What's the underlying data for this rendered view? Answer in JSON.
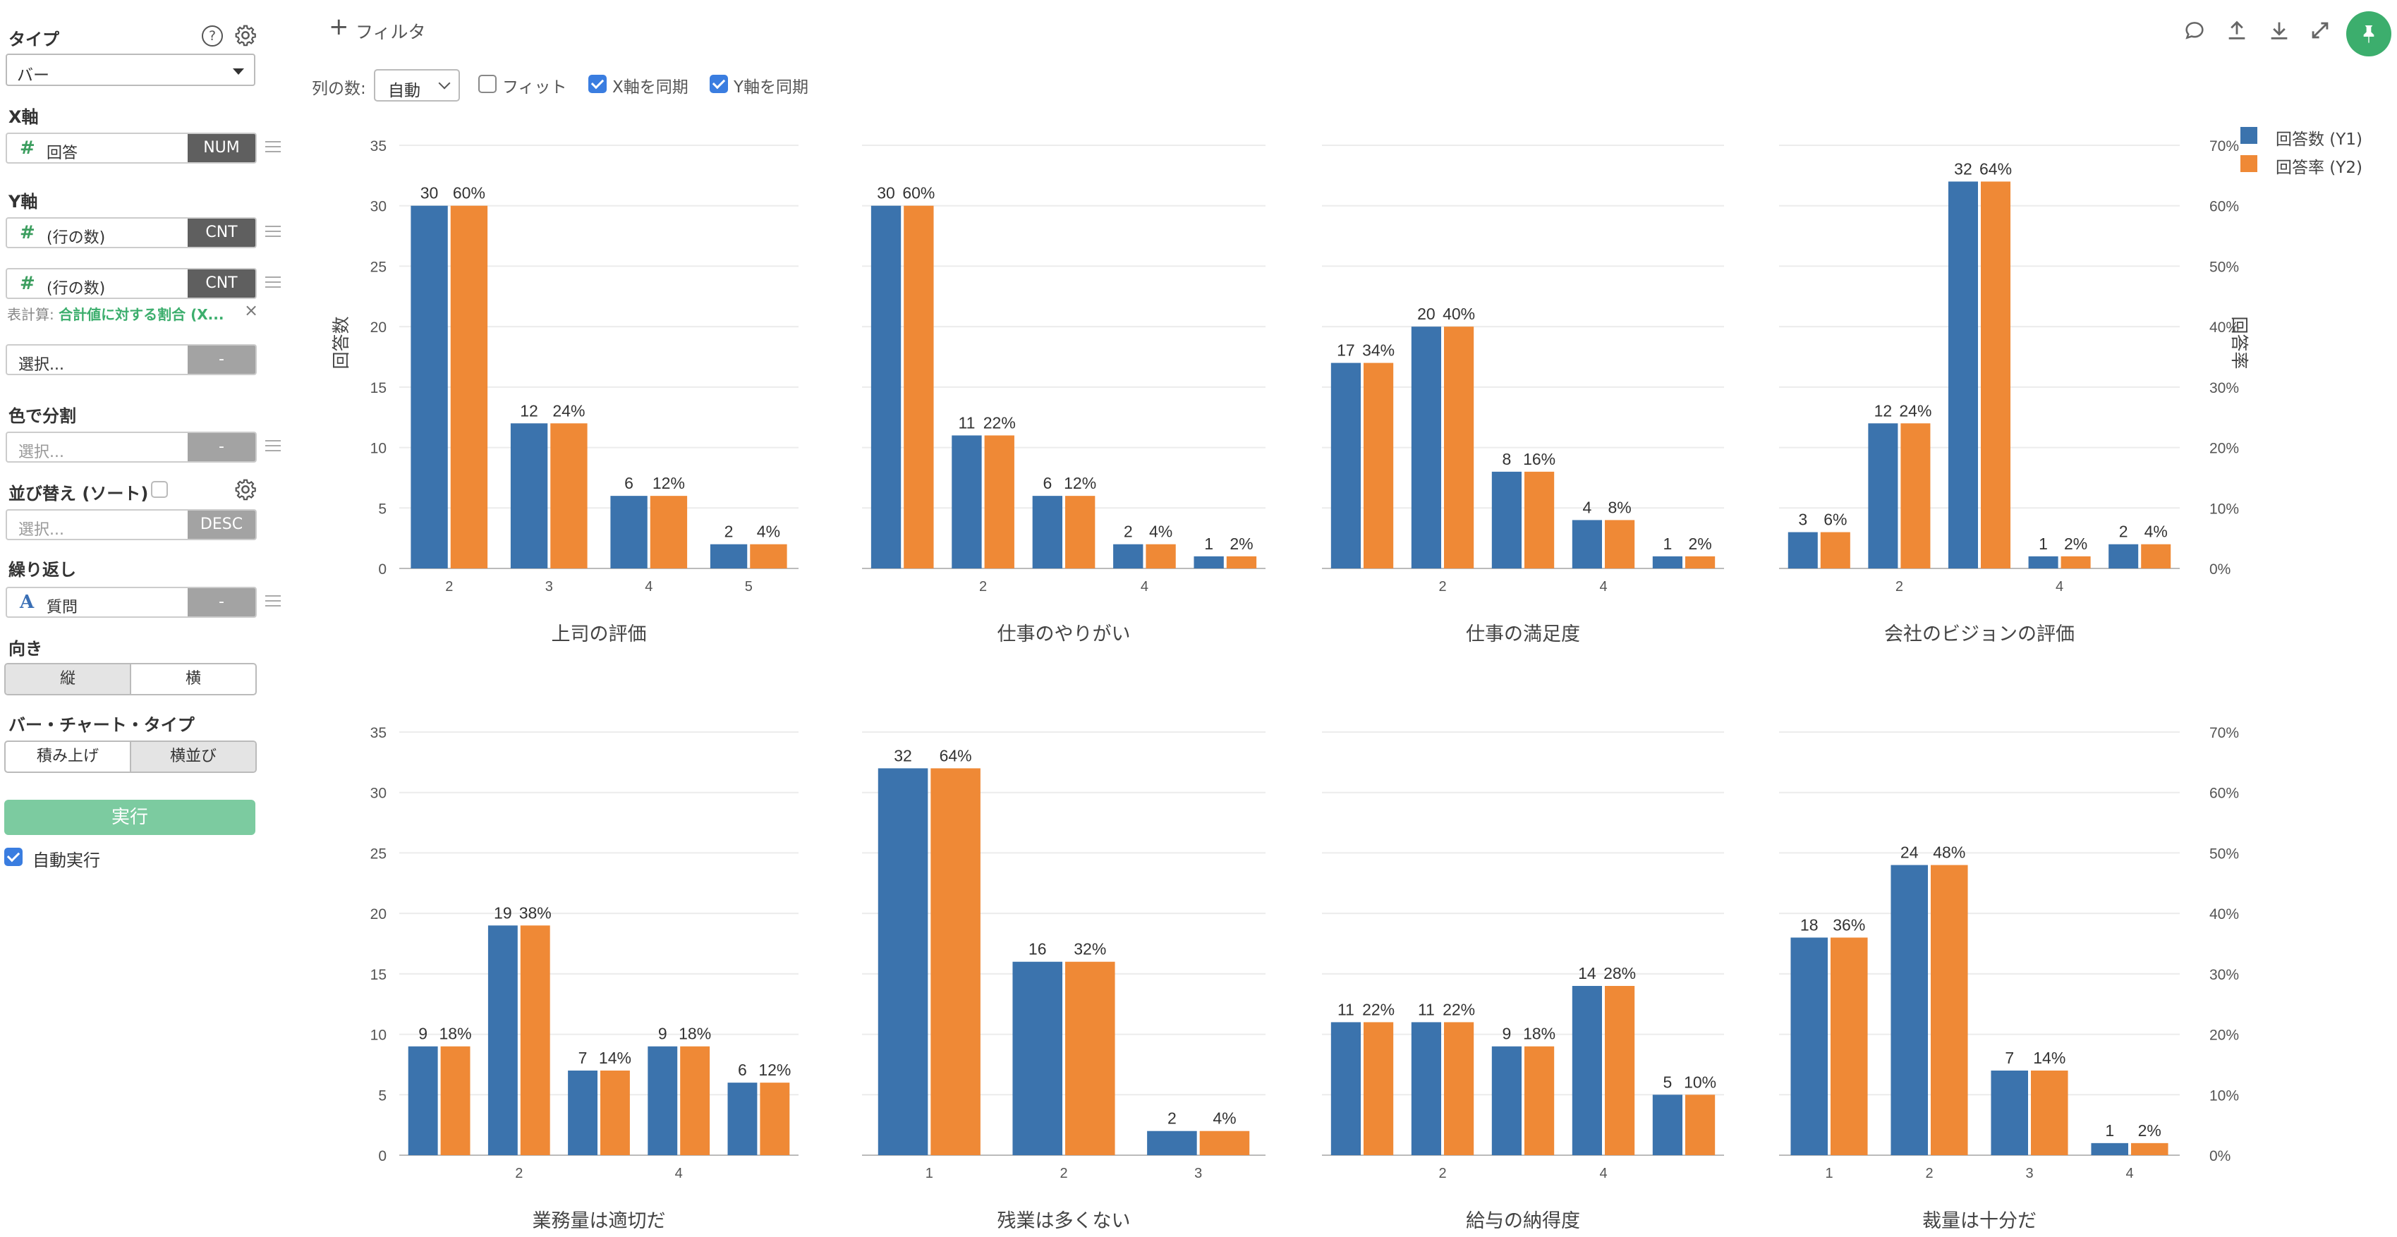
{
  "sidebar": {
    "type_label": "タイプ",
    "type_value": "バー",
    "x_axis_label": "X軸",
    "x_field": {
      "name": "回答",
      "tag": "NUM"
    },
    "y_axis_label": "Y軸",
    "y_fields": [
      {
        "name": "(行の数)",
        "tag": "CNT"
      },
      {
        "name": "(行の数)",
        "tag": "CNT"
      }
    ],
    "calc_prefix": "表計算:",
    "calc_value": "合計値に対する割合 (X...",
    "extra_select": {
      "placeholder": "選択...",
      "tag": "-"
    },
    "color_label": "色で分割",
    "color_select": {
      "placeholder": "選択...",
      "tag": "-"
    },
    "sort_label": "並び替え (ソート)",
    "sort_select": {
      "placeholder": "選択...",
      "tag": "DESC"
    },
    "repeat_label": "繰り返し",
    "repeat_field": {
      "name": "質問",
      "tag": "-"
    },
    "direction_label": "向き",
    "direction_options": [
      "縦",
      "横"
    ],
    "bartype_label": "バー・チャート・タイプ",
    "bartype_options": [
      "積み上げ",
      "横並び"
    ],
    "run_label": "実行",
    "auto_run_label": "自動実行"
  },
  "toolbar": {
    "filter_label": "フィルタ",
    "columns_label": "列の数:",
    "columns_value": "自動",
    "fit_label": "フィット",
    "sync_x_label": "X軸を同期",
    "sync_y_label": "Y軸を同期"
  },
  "colors": {
    "y1": "#3b73ad",
    "y2": "#ef8936",
    "accent": "#3cae6d"
  },
  "legend": [
    "回答数 (Y1)",
    "回答率 (Y2)"
  ],
  "chart_data": {
    "type": "bar",
    "ylabel_left": "回答数",
    "ylabel_right": "回答率",
    "y1_ticks": [
      0,
      5,
      10,
      15,
      20,
      25,
      30,
      35
    ],
    "y2_ticks": [
      "0%",
      "10%",
      "20%",
      "30%",
      "40%",
      "50%",
      "60%",
      "70%"
    ],
    "y1_lim": [
      0,
      35
    ],
    "y2_lim": [
      0,
      70
    ],
    "panels": [
      {
        "title": "上司の評価",
        "categories": [
          2,
          3,
          4,
          5
        ],
        "tick_labels": [
          "2",
          "3",
          "4",
          "5"
        ],
        "values": [
          30,
          12,
          6,
          2
        ],
        "pct": [
          60,
          24,
          12,
          4
        ]
      },
      {
        "title": "仕事のやりがい",
        "categories": [
          1,
          2,
          3,
          4,
          5
        ],
        "tick_labels": [
          "",
          "2",
          "",
          "4",
          ""
        ],
        "values": [
          30,
          11,
          6,
          2,
          1
        ],
        "pct": [
          60,
          22,
          12,
          4,
          2
        ]
      },
      {
        "title": "仕事の満足度",
        "categories": [
          1,
          2,
          3,
          4,
          5
        ],
        "tick_labels": [
          "",
          "2",
          "",
          "4",
          ""
        ],
        "values": [
          17,
          20,
          8,
          4,
          1
        ],
        "pct": [
          34,
          40,
          16,
          8,
          2
        ]
      },
      {
        "title": "会社のビジョンの評価",
        "categories": [
          1,
          2,
          3,
          4,
          5
        ],
        "tick_labels": [
          "",
          "2",
          "",
          "4",
          ""
        ],
        "values": [
          3,
          12,
          32,
          1,
          2
        ],
        "pct": [
          6,
          24,
          64,
          2,
          4
        ]
      },
      {
        "title": "業務量は適切だ",
        "categories": [
          1,
          2,
          3,
          4,
          5
        ],
        "tick_labels": [
          "",
          "2",
          "",
          "4",
          ""
        ],
        "values": [
          9,
          19,
          7,
          9,
          6
        ],
        "pct": [
          18,
          38,
          14,
          18,
          12
        ]
      },
      {
        "title": "残業は多くない",
        "categories": [
          1,
          2,
          3
        ],
        "tick_labels": [
          "1",
          "2",
          "3"
        ],
        "values": [
          32,
          16,
          2
        ],
        "pct": [
          64,
          32,
          4
        ]
      },
      {
        "title": "給与の納得度",
        "categories": [
          1,
          2,
          3,
          4,
          5
        ],
        "tick_labels": [
          "",
          "2",
          "",
          "4",
          ""
        ],
        "values": [
          11,
          11,
          9,
          14,
          5
        ],
        "pct": [
          22,
          22,
          18,
          28,
          10
        ]
      },
      {
        "title": "裁量は十分だ",
        "categories": [
          1,
          2,
          3,
          4
        ],
        "tick_labels": [
          "1",
          "2",
          "3",
          "4"
        ],
        "values": [
          18,
          24,
          7,
          1
        ],
        "pct": [
          36,
          48,
          14,
          2
        ]
      }
    ]
  }
}
